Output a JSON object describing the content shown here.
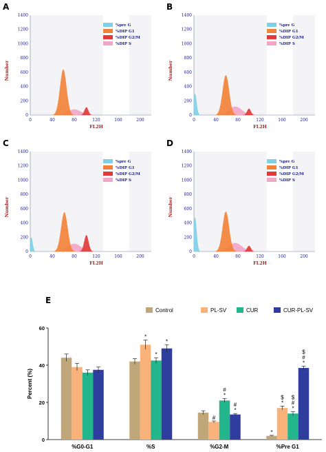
{
  "chart_data": [
    {
      "panel": "A",
      "type": "area",
      "xlabel": "FL2H",
      "ylabel": "Number",
      "ylim": [
        0,
        1400
      ],
      "xlim": [
        0,
        220
      ],
      "yticks": [
        0,
        200,
        400,
        600,
        800,
        1000,
        1200,
        1400
      ],
      "xticks": [
        0,
        40,
        80,
        120,
        160,
        200
      ],
      "legend": [
        "%pre G",
        "%DIP G1",
        "%DIP G2/M",
        "%DIP S"
      ],
      "peaks": [
        {
          "series": "%pre G",
          "center": 3,
          "width": 2,
          "height": 0
        },
        {
          "series": "%DIP G1",
          "center": 60,
          "width": 6,
          "height": 640
        },
        {
          "series": "%DIP S",
          "center": 80,
          "width": 12,
          "height": 80
        },
        {
          "series": "%DIP G2/M",
          "center": 102,
          "width": 3.5,
          "height": 110
        }
      ]
    },
    {
      "panel": "B",
      "type": "area",
      "xlabel": "FL2H",
      "ylabel": "Number",
      "ylim": [
        0,
        1400
      ],
      "xlim": [
        0,
        220
      ],
      "yticks": [
        0,
        200,
        400,
        600,
        800,
        1000,
        1200,
        1400
      ],
      "xticks": [
        0,
        40,
        80,
        120,
        160,
        200
      ],
      "legend": [
        "%pre G",
        "%DIP G1",
        "%DIP G2/M",
        "%DIP S"
      ],
      "peaks": [
        {
          "series": "%pre G",
          "center": 2,
          "width": 3,
          "height": 300
        },
        {
          "series": "%DIP G1",
          "center": 58,
          "width": 6,
          "height": 560
        },
        {
          "series": "%DIP S",
          "center": 75,
          "width": 12,
          "height": 120
        },
        {
          "series": "%DIP G2/M",
          "center": 100,
          "width": 3.5,
          "height": 90
        }
      ]
    },
    {
      "panel": "C",
      "type": "area",
      "xlabel": "FL2H",
      "ylabel": "Number",
      "ylim": [
        0,
        1400
      ],
      "xlim": [
        0,
        220
      ],
      "yticks": [
        0,
        200,
        400,
        600,
        800,
        1000,
        1200,
        1400
      ],
      "xticks": [
        0,
        40,
        80,
        120,
        160,
        200
      ],
      "legend": [
        "%pre G",
        "%DIP G1",
        "%DIP G2/M",
        "%DIP S"
      ],
      "peaks": [
        {
          "series": "%pre G",
          "center": 2,
          "width": 2.5,
          "height": 200
        },
        {
          "series": "%DIP G1",
          "center": 62,
          "width": 6,
          "height": 550
        },
        {
          "series": "%DIP S",
          "center": 80,
          "width": 12,
          "height": 110
        },
        {
          "series": "%DIP G2/M",
          "center": 102,
          "width": 4,
          "height": 230
        }
      ]
    },
    {
      "panel": "D",
      "type": "area",
      "xlabel": "FL2H",
      "ylabel": "Number",
      "ylim": [
        0,
        1400
      ],
      "xlim": [
        0,
        220
      ],
      "yticks": [
        0,
        200,
        400,
        600,
        800,
        1000,
        1200,
        1400
      ],
      "xticks": [
        0,
        40,
        80,
        120,
        160,
        200
      ],
      "legend": [
        "%pre G",
        "%DIP G1",
        "%DIP G2/M",
        "%DIP S"
      ],
      "peaks": [
        {
          "series": "%pre G",
          "center": 2,
          "width": 3,
          "height": 480
        },
        {
          "series": "%DIP G1",
          "center": 58,
          "width": 6,
          "height": 560
        },
        {
          "series": "%DIP S",
          "center": 75,
          "width": 12,
          "height": 120
        },
        {
          "series": "%DIP G2/M",
          "center": 100,
          "width": 3.5,
          "height": 80
        }
      ]
    },
    {
      "panel": "E",
      "type": "bar",
      "ylabel": "Percent (%)",
      "ylim": [
        0,
        60
      ],
      "yticks": [
        0,
        20,
        40,
        60
      ],
      "categories": [
        "%G0-G1",
        "%S",
        "%G2-M",
        "%Pre G1"
      ],
      "series": [
        {
          "name": "Control",
          "values": [
            44,
            42,
            14.5,
            2
          ],
          "errors": [
            2,
            1.5,
            1,
            0.3
          ]
        },
        {
          "name": "PL-SV",
          "values": [
            39,
            51,
            9.5,
            17
          ],
          "errors": [
            2,
            2.5,
            0.5,
            1
          ]
        },
        {
          "name": "CUR",
          "values": [
            36,
            42.5,
            21,
            14
          ],
          "errors": [
            1.5,
            1.5,
            1,
            1
          ]
        },
        {
          "name": "CUR-PL-SV",
          "values": [
            37.5,
            49,
            13.5,
            38.5
          ],
          "errors": [
            1.5,
            2,
            0.5,
            1
          ]
        }
      ],
      "annotations": [
        [
          "",
          "",
          "",
          "*"
        ],
        [
          "",
          "*",
          "#",
          "$ *"
        ],
        [
          "",
          "*",
          "# *",
          "$ # *"
        ],
        [
          "",
          "*",
          "# *",
          "$ # *"
        ]
      ],
      "legend_placement": "top"
    }
  ],
  "colors": {
    "pre_g": "#7fd0e6",
    "dip_g1": "#f2813a",
    "dip_g2m": "#e23a3a",
    "dip_s": "#f2a6c6",
    "control": "#bfa77a",
    "pl_sv": "#f9b27a",
    "cur": "#23b58c",
    "cur_pl_sv": "#2f3e9e"
  }
}
